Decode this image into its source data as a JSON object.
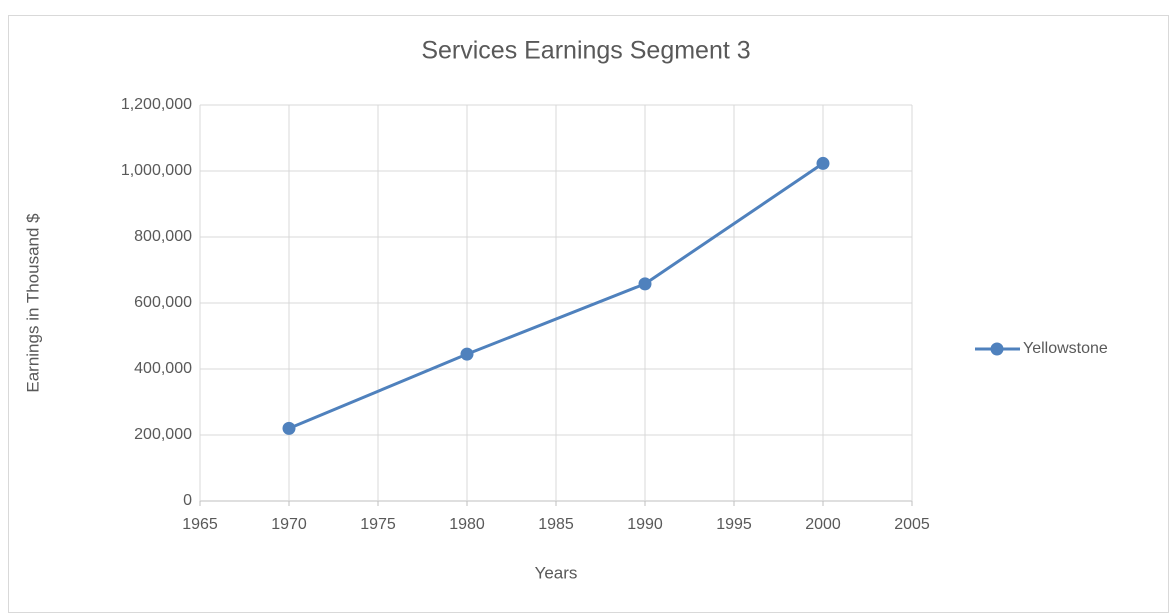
{
  "chart_data": {
    "type": "line",
    "title": "Services Earnings Segment 3",
    "x_label": "Years",
    "y_label": "Earnings in Thousand $",
    "x": [
      1970,
      1980,
      1990,
      2000
    ],
    "series": [
      {
        "name": "Yellowstone",
        "color": "#4f81bd",
        "values": [
          220000,
          445000,
          658000,
          1023000
        ]
      }
    ],
    "xlim": [
      1965,
      2005
    ],
    "xticks": [
      1965,
      1970,
      1975,
      1980,
      1985,
      1990,
      1995,
      2000,
      2005
    ],
    "ylim": [
      0,
      1200000
    ],
    "yticks": [
      0,
      {
        "value": 200000,
        "label": "200,000"
      },
      {
        "value": 400000,
        "label": "400,000"
      },
      {
        "value": 600000,
        "label": "600,000"
      },
      {
        "value": 800000,
        "label": "800,000"
      },
      {
        "value": 1000000,
        "label": "1,000,000"
      },
      {
        "value": 1200000,
        "label": "1,200,000"
      }
    ],
    "grid": true,
    "legend": "right"
  }
}
